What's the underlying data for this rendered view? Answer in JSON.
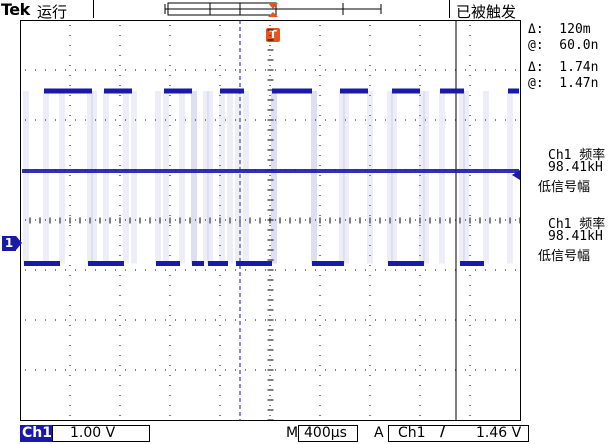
{
  "header": {
    "brand": "Tek",
    "run_state": "运行",
    "trigger_state": "已被触发",
    "trigger_marker": "T"
  },
  "readouts": {
    "cursor1_delta": "Δ:  120m",
    "cursor1_at": "@:  60.0n",
    "cursor2_delta": "Δ:  1.74n",
    "cursor2_at": "@:  1.47n",
    "meas1_label": "Ch1 频率",
    "meas1_value": "98.41kH",
    "meas1_note": "低信号幅",
    "meas2_label": "Ch1 频率",
    "meas2_value": "98.41kH",
    "meas2_note": "低信号幅"
  },
  "bottom": {
    "channel": "Ch1",
    "volts_per_div": "1.00 V",
    "timebase_prefix": "M",
    "timebase": "400µs",
    "trigger_mode": "A",
    "trigger_source": "Ch1",
    "trigger_slope": "∕",
    "trigger_level": "1.46 V"
  },
  "channel_marker": "1",
  "colors": {
    "trace": "#1a1aa8",
    "trigger": "#e8541c",
    "grid": "#000000"
  },
  "waveform": {
    "levels_div": {
      "high": 6.6,
      "mid": 5.0,
      "low": 3.15
    },
    "high_segments": [
      [
        0.6,
        1.8
      ],
      [
        2.1,
        2.8
      ],
      [
        3.6,
        4.3
      ],
      [
        5.0,
        5.6
      ],
      [
        6.3,
        7.3
      ],
      [
        8.0,
        8.7
      ],
      [
        9.3,
        10.0
      ],
      [
        10.5,
        11.1
      ],
      [
        12.2,
        12.9
      ]
    ],
    "low_segments": [
      [
        0.1,
        1.0
      ],
      [
        1.7,
        2.6
      ],
      [
        3.4,
        4.0
      ],
      [
        4.3,
        4.6
      ],
      [
        4.7,
        5.2
      ],
      [
        5.4,
        6.3
      ],
      [
        7.3,
        8.1
      ],
      [
        9.2,
        10.1
      ],
      [
        11.0,
        11.6
      ]
    ]
  }
}
